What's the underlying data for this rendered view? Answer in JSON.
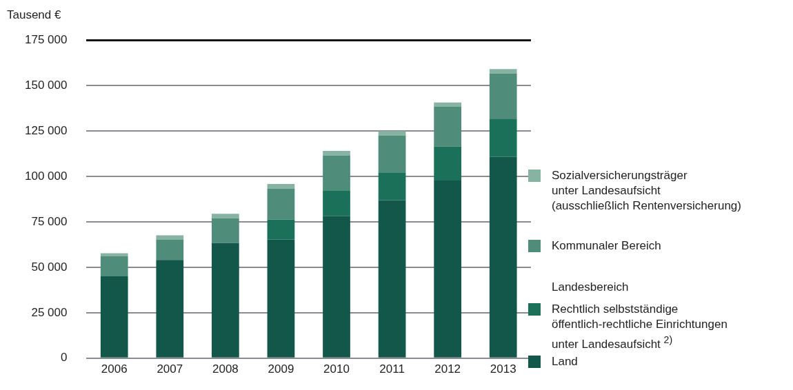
{
  "chart_data": {
    "type": "bar",
    "stacked": true,
    "ylabel": "Tausend €",
    "categories": [
      "2006",
      "2007",
      "2008",
      "2009",
      "2010",
      "2011",
      "2012",
      "2013"
    ],
    "series": [
      {
        "name": "Land",
        "color": "#12574a",
        "values": [
          45000,
          54000,
          63300,
          65300,
          78100,
          86900,
          97700,
          110700
        ]
      },
      {
        "name": "Rechtlich selbstständige\nöffentlich-rechtliche Einrichtungen\nunter Landesaufsicht $^{2)}$",
        "color": "#1a7059",
        "values": [
          null,
          null,
          null,
          11000,
          13900,
          15200,
          18700,
          21000
        ]
      },
      {
        "name": "Kommunaler Bereich",
        "color": "#4f8c7a",
        "values": [
          11000,
          11300,
          13600,
          16900,
          19500,
          20400,
          21800,
          24700
        ]
      },
      {
        "name": "Sozialversicherungsträger\nunter Landesaufsicht\n(ausschließlich Rentenversicherung)",
        "color": "#86b3a2",
        "values": [
          1700,
          2300,
          2500,
          2600,
          2500,
          2400,
          2400,
          2600
        ]
      }
    ],
    "legend_title": "Landesbereich",
    "legend": "right",
    "grid": "y",
    "ylim": [
      0,
      175000
    ],
    "yticks": [
      {
        "value": 0,
        "label": "0"
      },
      {
        "value": 25000,
        "label": "25 000"
      },
      {
        "value": 50000,
        "label": "50 000"
      },
      {
        "value": 75000,
        "label": "75 000"
      },
      {
        "value": 100000,
        "label": "100 000"
      },
      {
        "value": 125000,
        "label": "125 000"
      },
      {
        "value": 150000,
        "label": "150 000"
      },
      {
        "value": 175000,
        "label": "175 000"
      }
    ]
  }
}
